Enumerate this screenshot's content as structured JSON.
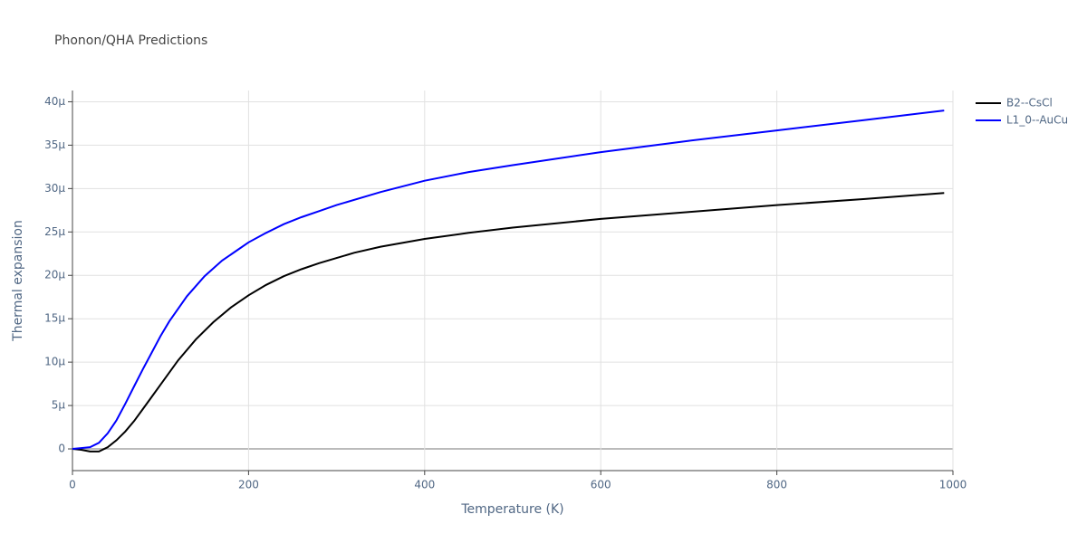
{
  "chart_data": {
    "type": "line",
    "title": "Phonon/QHA Predictions",
    "x_label": "Temperature (K)",
    "y_label": "Thermal expansion",
    "xlim": [
      0,
      1000
    ],
    "ylim": [
      -2.5e-06,
      4.13e-05
    ],
    "xticks": [
      0,
      200,
      400,
      600,
      800,
      1000
    ],
    "yticks": [
      0,
      {
        "value": 5e-06,
        "label": "5µ"
      },
      {
        "value": 1e-05,
        "label": "10µ"
      },
      {
        "value": 1.5e-05,
        "label": "15µ"
      },
      {
        "value": 2e-05,
        "label": "20µ"
      },
      {
        "value": 2.5e-05,
        "label": "25µ"
      },
      {
        "value": 3e-05,
        "label": "30µ"
      },
      {
        "value": 3.5e-05,
        "label": "35µ"
      },
      {
        "value": 4e-05,
        "label": "40µ"
      }
    ],
    "grid": true,
    "legend": "outside-right",
    "series": [
      {
        "name": "B2--CsCl",
        "color": "#000000",
        "x": [
          0,
          10,
          20,
          30,
          40,
          50,
          60,
          70,
          80,
          90,
          100,
          120,
          140,
          160,
          180,
          200,
          220,
          240,
          260,
          280,
          300,
          320,
          350,
          400,
          450,
          500,
          600,
          700,
          800,
          900,
          990
        ],
        "values": [
          0,
          -1e-07,
          -3e-07,
          -3e-07,
          2e-07,
          1e-06,
          2e-06,
          3.2e-06,
          4.6e-06,
          6e-06,
          7.4e-06,
          1.02e-05,
          1.26e-05,
          1.46e-05,
          1.63e-05,
          1.77e-05,
          1.89e-05,
          1.99e-05,
          2.07e-05,
          2.14e-05,
          2.2e-05,
          2.26e-05,
          2.33e-05,
          2.42e-05,
          2.49e-05,
          2.55e-05,
          2.65e-05,
          2.73e-05,
          2.81e-05,
          2.88e-05,
          2.95e-05
        ]
      },
      {
        "name": "L1_0--AuCu",
        "color": "#0000ff",
        "x": [
          0,
          10,
          20,
          30,
          40,
          50,
          60,
          70,
          80,
          90,
          100,
          110,
          130,
          150,
          170,
          190,
          200,
          220,
          240,
          260,
          280,
          300,
          350,
          400,
          450,
          500,
          600,
          700,
          800,
          900,
          990
        ],
        "values": [
          0,
          1e-07,
          2e-07,
          7e-07,
          1.8e-06,
          3.3e-06,
          5.2e-06,
          7.2e-06,
          9.2e-06,
          1.11e-05,
          1.3e-05,
          1.47e-05,
          1.76e-05,
          1.99e-05,
          2.17e-05,
          2.31e-05,
          2.38e-05,
          2.49e-05,
          2.59e-05,
          2.67e-05,
          2.74e-05,
          2.81e-05,
          2.96e-05,
          3.09e-05,
          3.19e-05,
          3.27e-05,
          3.42e-05,
          3.55e-05,
          3.67e-05,
          3.79e-05,
          3.9e-05
        ]
      }
    ]
  }
}
